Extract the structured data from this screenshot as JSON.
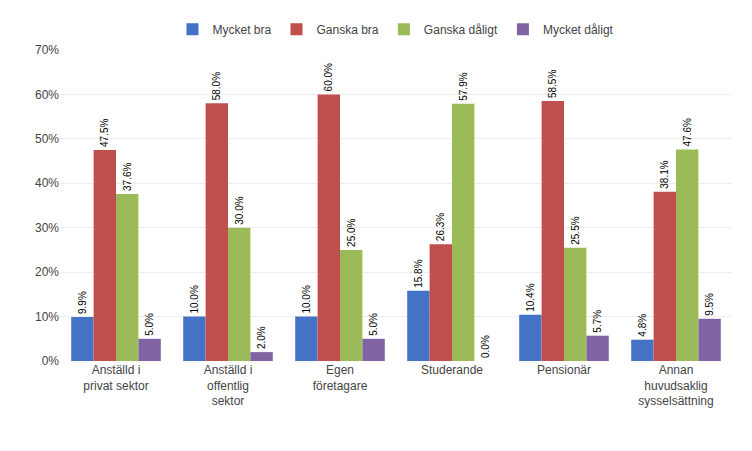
{
  "chart_data": {
    "type": "bar",
    "categories": [
      "Anställd i\nprivat sektor",
      "Anställd i\noffentlig\nsektor",
      "Egen\nföretagare",
      "Studerande",
      "Pensionär",
      "Annan\nhuvudsaklig\nsysselsättning"
    ],
    "series": [
      {
        "name": "Mycket bra",
        "color": "#4472C4",
        "values": [
          9.9,
          10.0,
          10.0,
          15.8,
          10.4,
          4.8
        ],
        "value_labels": [
          "9.9%",
          "10.0%",
          "10.0%",
          "15.8%",
          "10.4%",
          "4.8%"
        ]
      },
      {
        "name": "Ganska bra",
        "color": "#C0504D",
        "values": [
          47.5,
          58.0,
          60.0,
          26.3,
          58.5,
          38.1
        ],
        "value_labels": [
          "47.5%",
          "58.0%",
          "60.0%",
          "26.3%",
          "58.5%",
          "38.1%"
        ]
      },
      {
        "name": "Ganska dåligt",
        "color": "#9BBB59",
        "values": [
          37.6,
          30.0,
          25.0,
          57.9,
          25.5,
          47.6
        ],
        "value_labels": [
          "37.6%",
          "30.0%",
          "25.0%",
          "57.9%",
          "25.5%",
          "47.6%"
        ]
      },
      {
        "name": "Mycket dåligt",
        "color": "#8064A2",
        "values": [
          5.0,
          2.0,
          5.0,
          0.0,
          5.7,
          9.5
        ],
        "value_labels": [
          "5.0%",
          "2.0%",
          "5.0%",
          "0.0%",
          "5.7%",
          "9.5%"
        ]
      }
    ],
    "ylim": [
      0,
      70
    ],
    "yticks": [
      {
        "value": 0,
        "label": "0%"
      },
      {
        "value": 10,
        "label": "10%"
      },
      {
        "value": 20,
        "label": "20%"
      },
      {
        "value": 30,
        "label": "30%"
      },
      {
        "value": 40,
        "label": "40%"
      },
      {
        "value": 50,
        "label": "50%"
      },
      {
        "value": 60,
        "label": "60%"
      },
      {
        "value": 70,
        "label": "70%"
      }
    ],
    "grid": true,
    "legend": "top",
    "data_labels": true
  }
}
